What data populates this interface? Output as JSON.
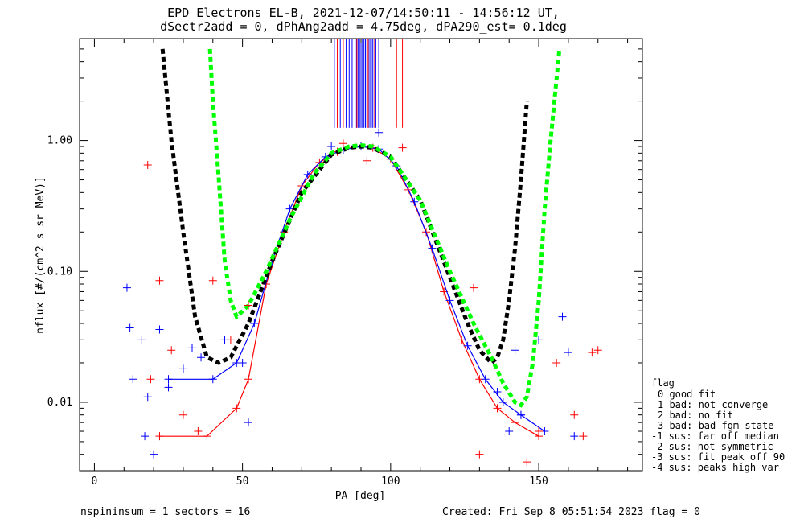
{
  "chart_data": {
    "type": "scatter",
    "title": "EPD Electrons EL-B, 2021-12-07/14:50:11 - 14:56:12 UT,",
    "subtitle": "dSectr2add = 0, dPhAng2add = 4.75deg, dPA290_est=   0.1deg",
    "xlabel": "PA [deg]",
    "ylabel": "nflux [#/(cm^2 s sr MeV)]",
    "xlim": [
      -5,
      185
    ],
    "ylim": [
      0.003,
      6.0
    ],
    "yscale": "log",
    "x_ticks": [
      {
        "v": 0,
        "label": "0"
      },
      {
        "v": 50,
        "label": "50"
      },
      {
        "v": 100,
        "label": "100"
      },
      {
        "v": 150,
        "label": "150"
      }
    ],
    "y_ticks": [
      {
        "v": 0.01,
        "label": "0.01"
      },
      {
        "v": 0.1,
        "label": "0.10"
      },
      {
        "v": 1.0,
        "label": "1.00"
      }
    ],
    "colors": {
      "blue": "#0000ff",
      "red": "#ff0000",
      "black": "#000000",
      "green": "#00ff00"
    },
    "series": [
      {
        "color": "red",
        "style": "solid",
        "x": [
          22,
          38,
          48,
          52,
          58,
          64,
          70,
          76,
          82,
          88,
          94,
          100,
          106,
          112,
          118,
          124,
          130,
          136,
          142,
          150
        ],
        "y": [
          0.0055,
          0.0055,
          0.009,
          0.015,
          0.08,
          0.2,
          0.45,
          0.68,
          0.82,
          0.9,
          0.88,
          0.72,
          0.42,
          0.2,
          0.07,
          0.03,
          0.015,
          0.009,
          0.007,
          0.0055
        ]
      },
      {
        "color": "blue",
        "style": "solid",
        "x": [
          25,
          40,
          48,
          54,
          60,
          66,
          72,
          78,
          84,
          90,
          96,
          102,
          108,
          114,
          120,
          126,
          132,
          138,
          144,
          152
        ],
        "y": [
          0.015,
          0.015,
          0.02,
          0.04,
          0.12,
          0.3,
          0.55,
          0.75,
          0.85,
          0.9,
          0.86,
          0.64,
          0.34,
          0.15,
          0.06,
          0.027,
          0.015,
          0.01,
          0.008,
          0.006
        ]
      },
      {
        "color": "black",
        "style": "dashed",
        "x": [
          23,
          26,
          30,
          34,
          38,
          42,
          46,
          52,
          60,
          70,
          80,
          86,
          90,
          94,
          100,
          110,
          120,
          126,
          130,
          134,
          136,
          138,
          140,
          142,
          144,
          146
        ],
        "y": [
          5.0,
          1.0,
          0.2,
          0.045,
          0.022,
          0.02,
          0.022,
          0.04,
          0.12,
          0.4,
          0.78,
          0.88,
          0.9,
          0.88,
          0.75,
          0.35,
          0.09,
          0.04,
          0.025,
          0.02,
          0.022,
          0.03,
          0.06,
          0.15,
          0.5,
          2.0
        ]
      },
      {
        "color": "green",
        "style": "dashed",
        "x": [
          39,
          40,
          42,
          44,
          46,
          48,
          52,
          58,
          66,
          74,
          80,
          86,
          90,
          94,
          100,
          110,
          120,
          128,
          134,
          138,
          142,
          144,
          146,
          148,
          150,
          152,
          154,
          157
        ],
        "y": [
          5.0,
          2.0,
          0.5,
          0.12,
          0.06,
          0.045,
          0.055,
          0.1,
          0.25,
          0.55,
          0.8,
          0.9,
          0.92,
          0.9,
          0.75,
          0.35,
          0.1,
          0.04,
          0.022,
          0.014,
          0.01,
          0.0095,
          0.011,
          0.02,
          0.06,
          0.3,
          1.0,
          5.0
        ]
      }
    ],
    "markers": [
      {
        "color": "blue",
        "points": [
          [
            11,
            0.075
          ],
          [
            12,
            0.037
          ],
          [
            13,
            0.015
          ],
          [
            16,
            0.03
          ],
          [
            17,
            0.0055
          ],
          [
            18,
            0.011
          ],
          [
            20,
            0.004
          ],
          [
            22,
            0.036
          ],
          [
            25,
            0.013
          ],
          [
            30,
            0.018
          ],
          [
            33,
            0.026
          ],
          [
            36,
            0.022
          ],
          [
            44,
            0.03
          ],
          [
            50,
            0.02
          ],
          [
            52,
            0.007
          ],
          [
            80,
            0.9
          ],
          [
            96,
            1.15
          ],
          [
            136,
            0.012
          ],
          [
            140,
            0.006
          ],
          [
            142,
            0.025
          ],
          [
            144,
            0.008
          ],
          [
            150,
            0.03
          ],
          [
            158,
            0.045
          ],
          [
            160,
            0.024
          ],
          [
            162,
            0.0055
          ]
        ]
      },
      {
        "color": "red",
        "points": [
          [
            18,
            0.65
          ],
          [
            19,
            0.015
          ],
          [
            22,
            0.085
          ],
          [
            26,
            0.025
          ],
          [
            30,
            0.008
          ],
          [
            35,
            0.006
          ],
          [
            40,
            0.085
          ],
          [
            46,
            0.03
          ],
          [
            52,
            0.055
          ],
          [
            84,
            0.95
          ],
          [
            92,
            0.7
          ],
          [
            104,
            0.88
          ],
          [
            128,
            0.075
          ],
          [
            130,
            0.004
          ],
          [
            146,
            0.0035
          ],
          [
            150,
            0.006
          ],
          [
            156,
            0.02
          ],
          [
            162,
            0.008
          ],
          [
            165,
            0.0055
          ],
          [
            168,
            0.024
          ],
          [
            170,
            0.025
          ]
        ]
      }
    ],
    "flag_lines": {
      "y_bottom": 1.25,
      "blue_x": [
        81,
        83,
        85,
        86,
        87,
        88,
        88.5,
        89,
        89.5,
        90,
        90.5,
        91,
        91.5,
        92,
        92.5,
        93,
        93.5,
        94,
        95,
        96
      ],
      "red_x": [
        82,
        84,
        88.6,
        92.4,
        94.6,
        102,
        104
      ]
    }
  },
  "legend": {
    "heading": "flag",
    "items": [
      "0 good fit",
      "1 bad: not converge",
      "2 bad: no fit",
      "3 bad: bad fgm state",
      "-1 sus: far off median",
      "-2 sus: not symmetric",
      "-3 sus: fit peak off 90",
      "-4 sus: peaks high var"
    ]
  },
  "footer": {
    "left": "nspininsum =  1  sectors = 16",
    "right": "Created: Fri Sep  8 05:51:54 2023   flag = 0"
  }
}
